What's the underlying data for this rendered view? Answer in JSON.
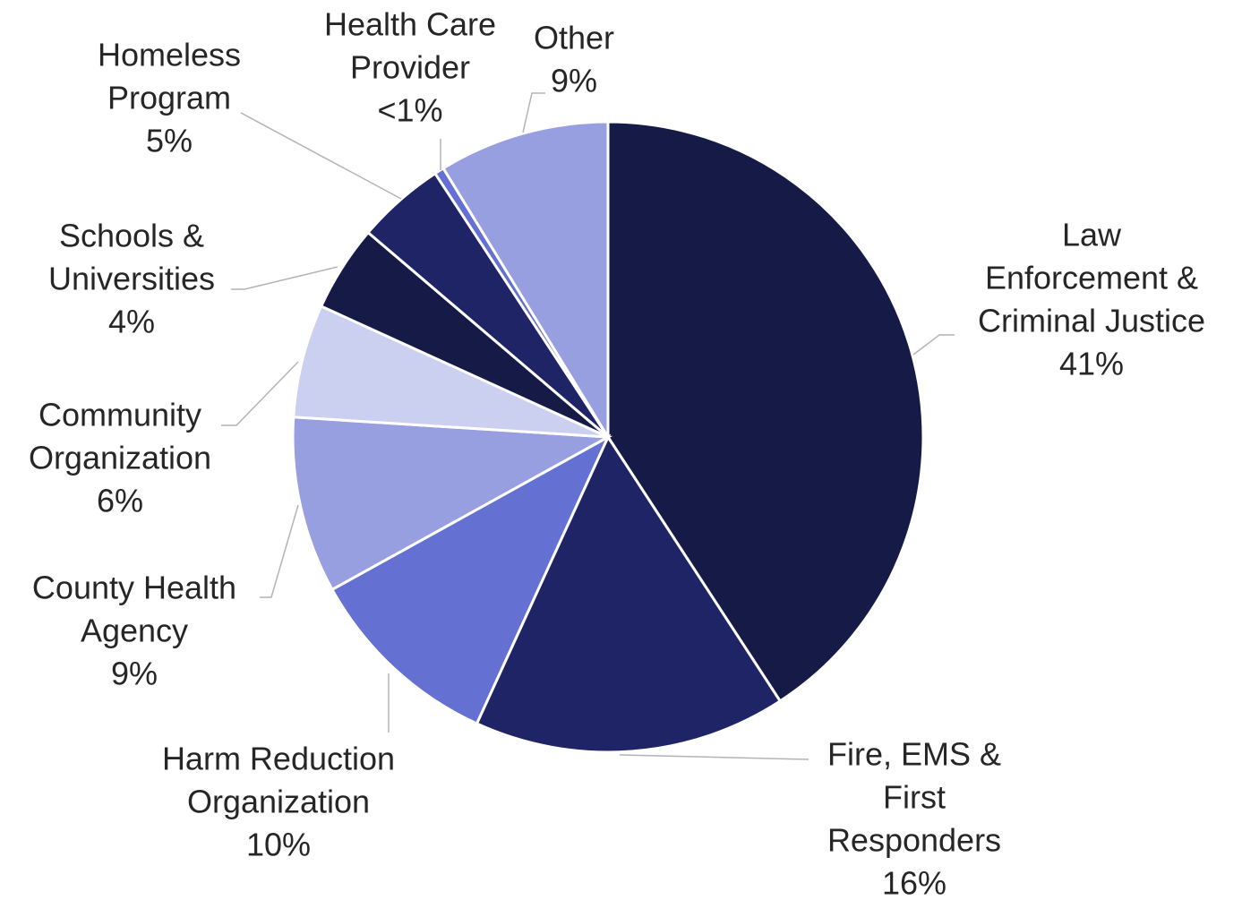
{
  "chart_data": {
    "type": "pie",
    "title": "",
    "start_angle_deg": 0,
    "direction": "clockwise",
    "slices": [
      {
        "name": "Law Enforcement & Criminal Justice",
        "lines": [
          "Law",
          "Enforcement &",
          "Criminal Justice"
        ],
        "pct_label": "41%",
        "value": 41.5,
        "color": "#151a47"
      },
      {
        "name": "Fire, EMS & First Responders",
        "lines": [
          "Fire, EMS &",
          "First",
          "Responders"
        ],
        "pct_label": "16%",
        "value": 16.3,
        "color": "#1e2466"
      },
      {
        "name": "Harm Reduction Organization",
        "lines": [
          "Harm Reduction",
          "Organization"
        ],
        "pct_label": "10%",
        "value": 10.3,
        "color": "#6470d2"
      },
      {
        "name": "County Health Agency",
        "lines": [
          "County Health",
          "Agency"
        ],
        "pct_label": "9%",
        "value": 9.2,
        "color": "#979fe0"
      },
      {
        "name": "Community Organization",
        "lines": [
          "Community",
          "Organization"
        ],
        "pct_label": "6%",
        "value": 5.9,
        "color": "#cbcff0"
      },
      {
        "name": "Schools & Universities",
        "lines": [
          "Schools &",
          "Universities"
        ],
        "pct_label": "4%",
        "value": 4.5,
        "color": "#151a47"
      },
      {
        "name": "Homeless Program",
        "lines": [
          "Homeless",
          "Program"
        ],
        "pct_label": "5%",
        "value": 4.6,
        "color": "#1e2466"
      },
      {
        "name": "Health Care Provider",
        "lines": [
          "Health Care",
          "Provider"
        ],
        "pct_label": "<1%",
        "value": 0.5,
        "color": "#6470d2"
      },
      {
        "name": "Other",
        "lines": [
          "Other"
        ],
        "pct_label": "9%",
        "value": 8.9,
        "color": "#979fe0"
      }
    ]
  }
}
